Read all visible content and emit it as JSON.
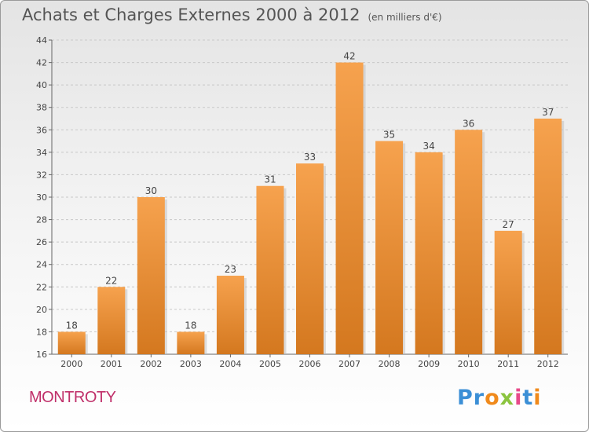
{
  "header": {
    "title": "Achats et Charges Externes 2000 à 2012",
    "unit": "(en milliers d'€)"
  },
  "footer": {
    "commune": "MONTROTY",
    "logo_text": "Proxiti"
  },
  "colors": {
    "bar_light": "#f6a24e",
    "bar_dark": "#d4781f",
    "commune": "#c0306a",
    "grid": "#c8c8c8"
  },
  "chart_data": {
    "type": "bar",
    "title": "Achats et Charges Externes 2000 à 2012",
    "subtitle": "(en milliers d'€)",
    "categories": [
      "2000",
      "2001",
      "2002",
      "2003",
      "2004",
      "2005",
      "2006",
      "2007",
      "2008",
      "2009",
      "2010",
      "2011",
      "2012"
    ],
    "values": [
      18,
      22,
      30,
      18,
      23,
      31,
      33,
      42,
      35,
      34,
      36,
      27,
      37
    ],
    "ylim": [
      16,
      44
    ],
    "yticks": [
      16,
      18,
      20,
      22,
      24,
      26,
      28,
      30,
      32,
      34,
      36,
      38,
      40,
      42,
      44
    ],
    "grid": true,
    "data_labels": true
  }
}
